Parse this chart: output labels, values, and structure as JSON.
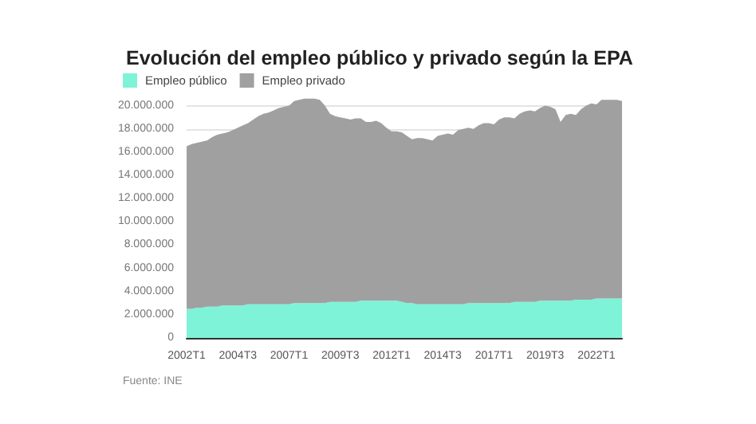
{
  "chart_data": {
    "type": "area",
    "title": "Evolución del empleo público y privado según la EPA",
    "stacked": true,
    "legend": "top left",
    "grid": "y",
    "annotations": [
      "Fuente: INE"
    ],
    "categories": [
      "2002T1",
      null,
      null,
      null,
      null,
      null,
      null,
      null,
      null,
      null,
      "2004T3",
      null,
      null,
      null,
      null,
      null,
      null,
      null,
      null,
      null,
      "2007T1",
      null,
      null,
      null,
      null,
      null,
      null,
      null,
      null,
      null,
      "2009T3",
      null,
      null,
      null,
      null,
      null,
      null,
      null,
      null,
      null,
      "2012T1",
      null,
      null,
      null,
      null,
      null,
      null,
      null,
      null,
      null,
      "2014T3",
      null,
      null,
      null,
      null,
      null,
      null,
      null,
      null,
      null,
      "2017T1",
      null,
      null,
      null,
      null,
      null,
      null,
      null,
      null,
      null,
      "2019T3",
      null,
      null,
      null,
      null,
      null,
      null,
      null,
      null,
      null,
      "2022T1",
      null,
      null,
      null,
      null,
      null
    ],
    "ylim": [
      0,
      21000000
    ],
    "yticks": [
      {
        "value": 0,
        "label": "0"
      },
      {
        "value": 2000000,
        "label": "2.000.000"
      },
      {
        "value": 4000000,
        "label": "4.000.000"
      },
      {
        "value": 6000000,
        "label": "6.000.000"
      },
      {
        "value": 8000000,
        "label": "8.000.000"
      },
      {
        "value": 10000000,
        "label": "10.000.000"
      },
      {
        "value": 12000000,
        "label": "12.000.000"
      },
      {
        "value": 14000000,
        "label": "14.000.000"
      },
      {
        "value": 16000000,
        "label": "16.000.000"
      },
      {
        "value": 18000000,
        "label": "18.000.000"
      },
      {
        "value": 20000000,
        "label": "20.000.000"
      }
    ],
    "series": [
      {
        "name": "Empleo público",
        "color": "#7ef3d8",
        "values": [
          2500000,
          2500000,
          2600000,
          2600000,
          2700000,
          2700000,
          2700000,
          2800000,
          2800000,
          2800000,
          2800000,
          2800000,
          2900000,
          2900000,
          2900000,
          2900000,
          2900000,
          2900000,
          2900000,
          2900000,
          2900000,
          3000000,
          3000000,
          3000000,
          3000000,
          3000000,
          3000000,
          3000000,
          3100000,
          3100000,
          3100000,
          3100000,
          3100000,
          3100000,
          3200000,
          3200000,
          3200000,
          3200000,
          3200000,
          3200000,
          3200000,
          3200000,
          3100000,
          3000000,
          3000000,
          2900000,
          2900000,
          2900000,
          2900000,
          2900000,
          2900000,
          2900000,
          2900000,
          2900000,
          2900000,
          3000000,
          3000000,
          3000000,
          3000000,
          3000000,
          3000000,
          3000000,
          3000000,
          3000000,
          3100000,
          3100000,
          3100000,
          3100000,
          3100000,
          3200000,
          3200000,
          3200000,
          3200000,
          3200000,
          3200000,
          3200000,
          3300000,
          3300000,
          3300000,
          3300000,
          3400000,
          3400000,
          3400000,
          3400000,
          3400000,
          3400000
        ]
      },
      {
        "name": "Empleo privado",
        "color": "#a0a0a0",
        "values": [
          14000000,
          14200000,
          14200000,
          14300000,
          14300000,
          14600000,
          14800000,
          14800000,
          14900000,
          15100000,
          15300000,
          15500000,
          15600000,
          15900000,
          16200000,
          16400000,
          16500000,
          16700000,
          16900000,
          17000000,
          17100000,
          17400000,
          17500000,
          17600000,
          17600000,
          17600000,
          17500000,
          17000000,
          16200000,
          16000000,
          15900000,
          15800000,
          15700000,
          15800000,
          15700000,
          15400000,
          15400000,
          15500000,
          15300000,
          14900000,
          14600000,
          14600000,
          14600000,
          14400000,
          14100000,
          14300000,
          14300000,
          14200000,
          14100000,
          14500000,
          14600000,
          14700000,
          14600000,
          15000000,
          15100000,
          15100000,
          15000000,
          15300000,
          15500000,
          15500000,
          15400000,
          15800000,
          16000000,
          16000000,
          15800000,
          16200000,
          16400000,
          16500000,
          16400000,
          16600000,
          16800000,
          16700000,
          16500000,
          15400000,
          16000000,
          16100000,
          15900000,
          16400000,
          16700000,
          16900000,
          16700000,
          17100000,
          17100000,
          17100000,
          17100000,
          17000000
        ]
      }
    ]
  }
}
